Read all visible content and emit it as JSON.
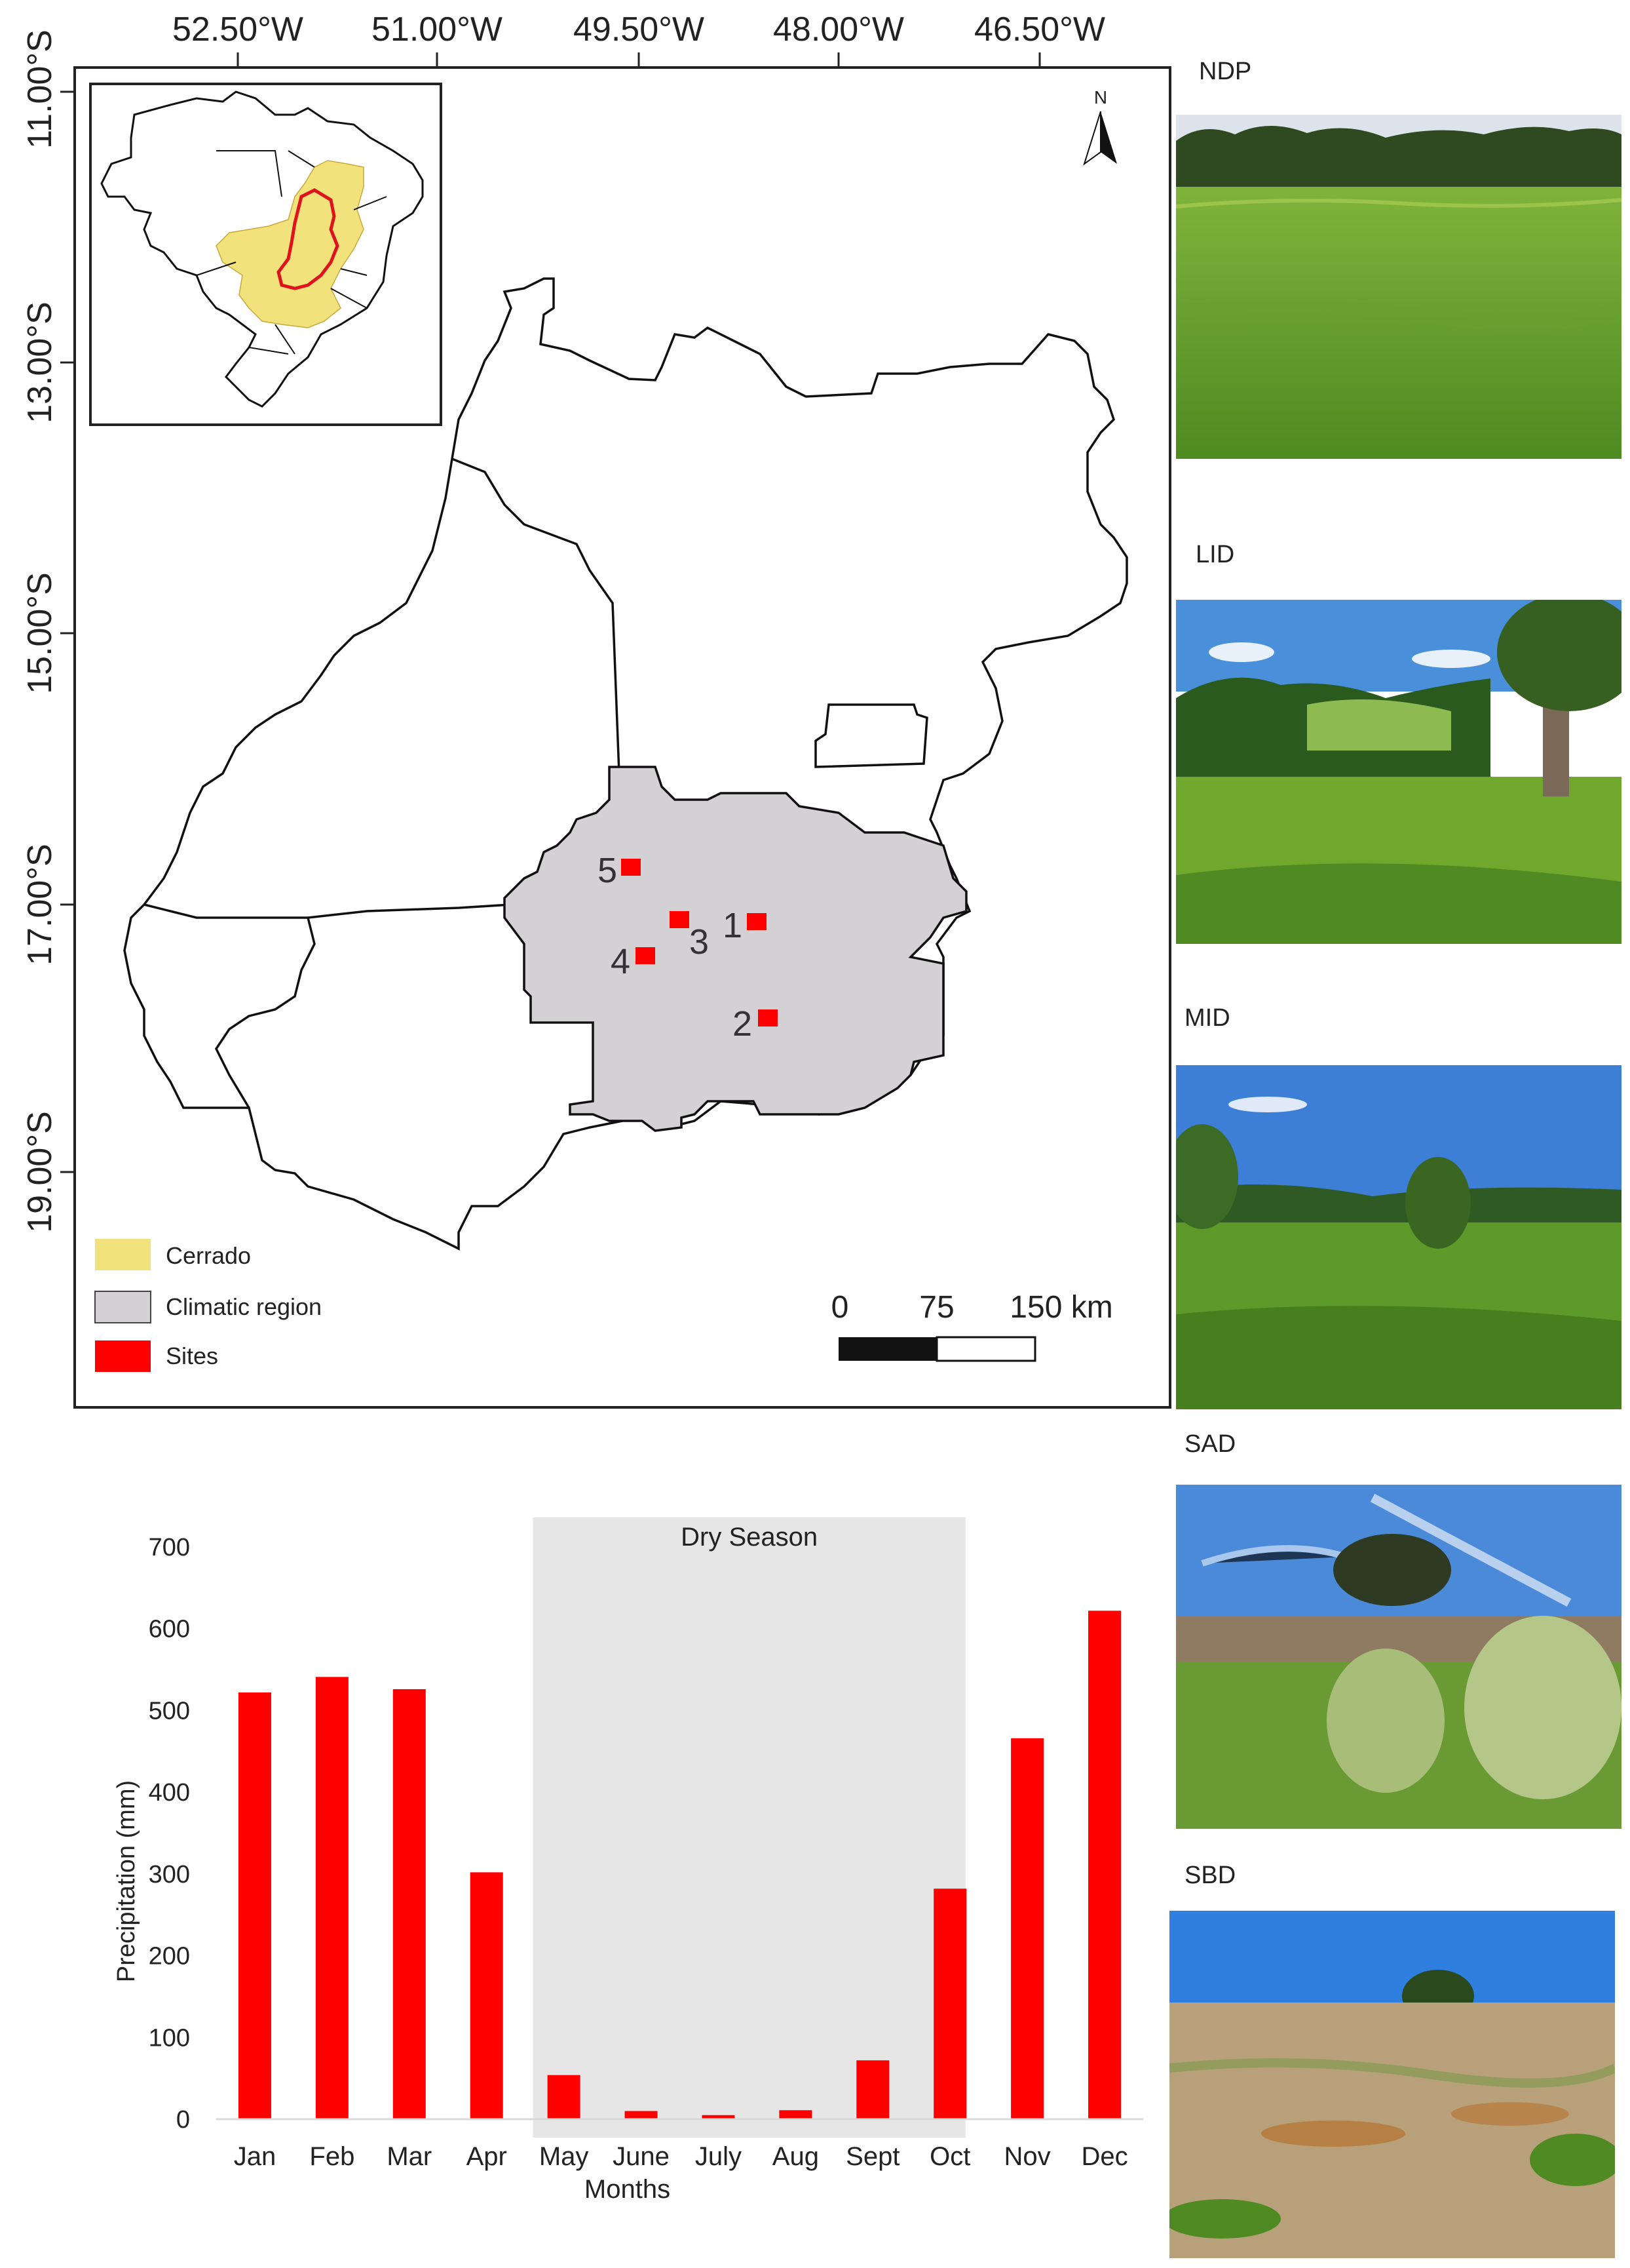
{
  "map": {
    "lon_ticks": [
      "52.50°W",
      "51.00°W",
      "49.50°W",
      "48.00°W",
      "46.50°W"
    ],
    "lat_ticks": [
      "11.00°S",
      "13.00°S",
      "15.00°S",
      "17.00°S",
      "19.00°S"
    ],
    "north_label": "N",
    "site_labels": [
      "5",
      "3",
      "1",
      "4",
      "2"
    ],
    "legend": {
      "cerrado": "Cerrado",
      "climatic_region": "Climatic region",
      "sites": "Sites"
    },
    "colors": {
      "cerrado": "#f2e27c",
      "climatic_region": "#d3d1d3",
      "sites": "#ff0000"
    },
    "scale_labels": [
      "0",
      "75",
      "150 km"
    ]
  },
  "photos": [
    {
      "label": "NDP",
      "scene": "green-pasture-with-treeline"
    },
    {
      "label": "LID",
      "scene": "pasture-with-tall-tree-and-hills"
    },
    {
      "label": "MID",
      "scene": "pasture-with-shrubs"
    },
    {
      "label": "SAD",
      "scene": "degraded-pasture-with-weeds"
    },
    {
      "label": "SBD",
      "scene": "bare-degraded-pasture"
    }
  ],
  "chart_data": {
    "type": "bar",
    "categories": [
      "Jan",
      "Feb",
      "Mar",
      "Apr",
      "May",
      "June",
      "July",
      "Aug",
      "Sept",
      "Oct",
      "Nov",
      "Dec"
    ],
    "values": [
      522,
      541,
      526,
      302,
      54,
      10,
      5,
      11,
      72,
      282,
      466,
      622
    ],
    "xlabel": "Months",
    "ylabel": "Precipitation (mm)",
    "ylim": [
      0,
      700
    ],
    "yticks": [
      0,
      100,
      200,
      300,
      400,
      500,
      600,
      700
    ],
    "bar_color": "#ff0000",
    "shaded_region": {
      "label": "Dry Season",
      "from": "May",
      "to": "Oct",
      "color": "#e6e6e6"
    },
    "grid": false,
    "legend": "none"
  }
}
